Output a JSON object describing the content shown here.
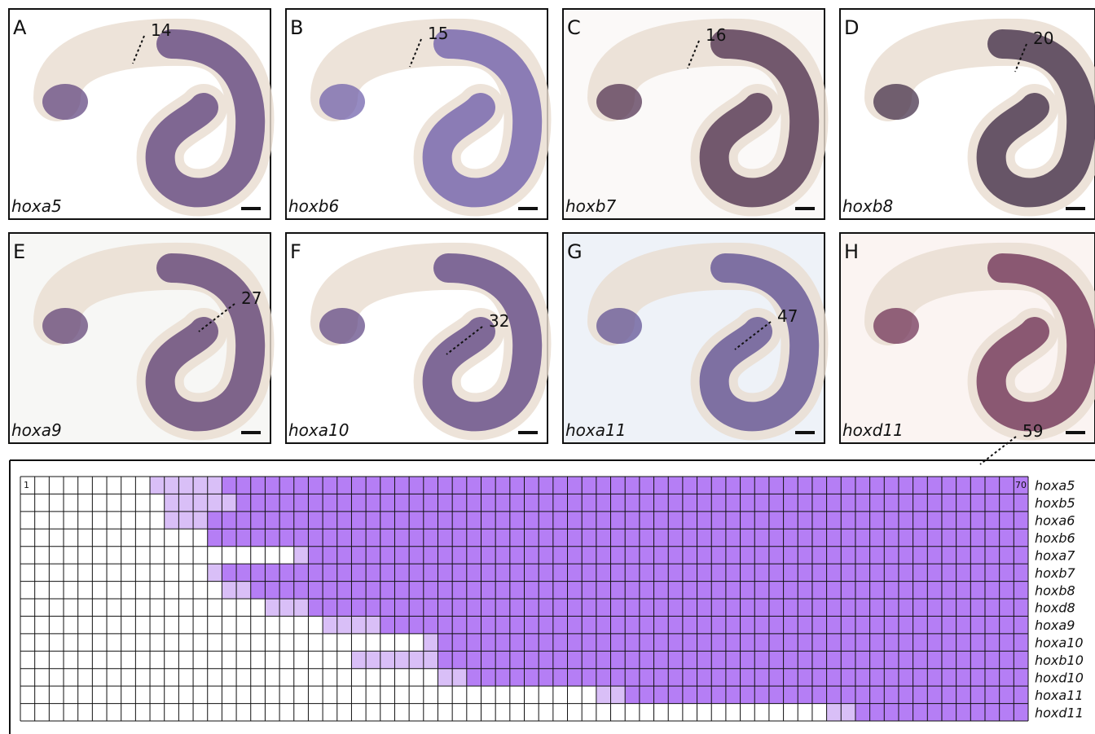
{
  "panels": [
    {
      "letter": "A",
      "gene": "hoxa5",
      "somite": 14
    },
    {
      "letter": "B",
      "gene": "hoxb6",
      "somite": 15
    },
    {
      "letter": "C",
      "gene": "hoxb7",
      "somite": 16
    },
    {
      "letter": "D",
      "gene": "hoxb8",
      "somite": 20
    },
    {
      "letter": "E",
      "gene": "hoxa9",
      "somite": 27
    },
    {
      "letter": "F",
      "gene": "hoxa10",
      "somite": 32
    },
    {
      "letter": "G",
      "gene": "hoxa11",
      "somite": 47
    },
    {
      "letter": "H",
      "gene": "hoxd11",
      "somite": 59
    }
  ],
  "grid": {
    "first": 1,
    "last": 70,
    "rows": [
      {
        "gene": "hoxa5",
        "weak_start": 10,
        "strong_start": 15
      },
      {
        "gene": "hoxb5",
        "weak_start": 11,
        "strong_start": 16
      },
      {
        "gene": "hoxa6",
        "weak_start": 11,
        "strong_start": 14
      },
      {
        "gene": "hoxb6",
        "weak_start": null,
        "strong_start": 14
      },
      {
        "gene": "hoxa7",
        "weak_start": 20,
        "strong_start": 21
      },
      {
        "gene": "hoxb7",
        "weak_start": 14,
        "strong_start": 15
      },
      {
        "gene": "hoxb8",
        "weak_start": 15,
        "strong_start": 17
      },
      {
        "gene": "hoxd8",
        "weak_start": 18,
        "strong_start": 21
      },
      {
        "gene": "hoxa9",
        "weak_start": 22,
        "strong_start": 26
      },
      {
        "gene": "hoxa10",
        "weak_start": 29,
        "strong_start": 30
      },
      {
        "gene": "hoxb10",
        "weak_start": 24,
        "strong_start": 30
      },
      {
        "gene": "hoxd10",
        "weak_start": 30,
        "strong_start": 32
      },
      {
        "gene": "hoxa11",
        "weak_start": 41,
        "strong_start": 43
      },
      {
        "gene": "hoxd11",
        "weak_start": 57,
        "strong_start": 59
      }
    ]
  }
}
